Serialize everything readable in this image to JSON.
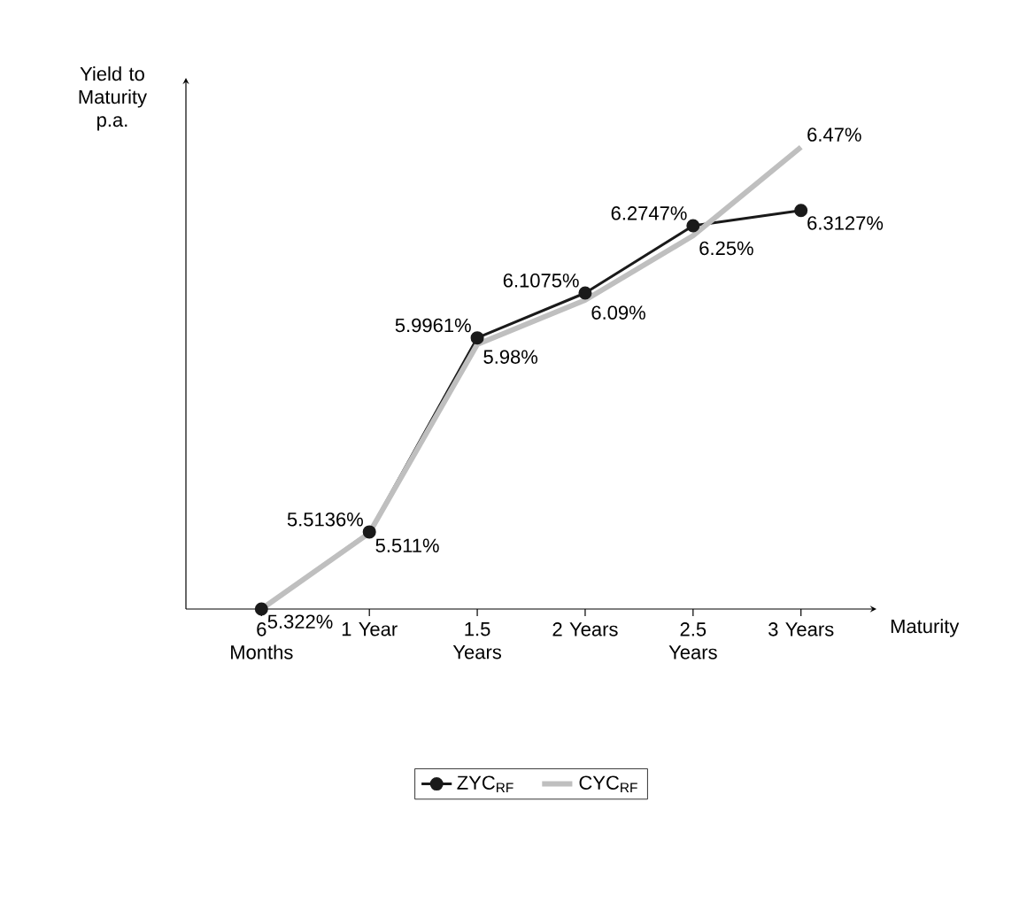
{
  "chart_data": {
    "type": "line",
    "xlabel": "Maturity",
    "ylabel": "Yield to Maturity p.a.",
    "categories": [
      "6 Months",
      "1 Year",
      "1.5 Years",
      "2 Years",
      "2.5 Years",
      "3 Years"
    ],
    "series": [
      {
        "name": "ZYC$_{RF}$",
        "color": "#1a1a1a",
        "marker": "circle",
        "values": [
          5.322,
          5.5136,
          5.9961,
          6.1075,
          6.2747,
          6.3127
        ],
        "value_labels": [
          null,
          "5.5136%",
          "5.9961%",
          "6.1075%",
          "6.2747%",
          "6.3127%"
        ]
      },
      {
        "name": "CYC$_{RF}$",
        "color": "#bfbfbf",
        "marker": "none",
        "values": [
          5.322,
          5.511,
          5.98,
          6.09,
          6.25,
          6.47
        ],
        "value_labels": [
          "5.322%",
          "5.511%",
          "5.98%",
          "6.09%",
          "6.25%",
          "6.47%"
        ]
      }
    ],
    "legend": "bottom",
    "grid": false
  }
}
